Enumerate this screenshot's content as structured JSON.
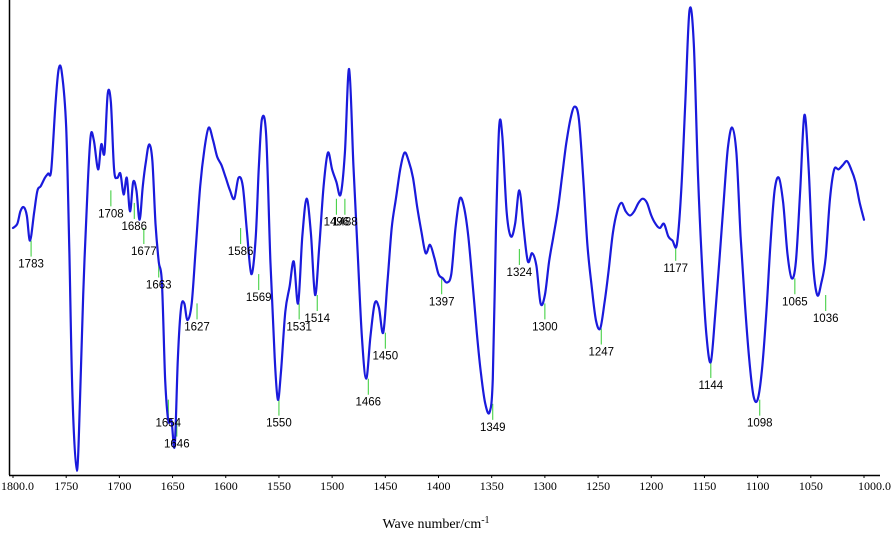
{
  "chart_data": {
    "type": "line",
    "title": "",
    "xlabel": "Wave number/cm",
    "xlabel_sup": "-1",
    "ylabel": "",
    "xlim": [
      1800,
      1000
    ],
    "x_reversed": true,
    "y_axis_ticks": false,
    "grid": false,
    "legend": "none",
    "colors": {
      "line": "#1a1adc",
      "marker": "#33cc33",
      "axis": "#000000"
    },
    "x_ticks": [
      {
        "value": 1800,
        "label": "1800.0"
      },
      {
        "value": 1750,
        "label": "1750"
      },
      {
        "value": 1700,
        "label": "1700"
      },
      {
        "value": 1650,
        "label": "1650"
      },
      {
        "value": 1600,
        "label": "1600"
      },
      {
        "value": 1550,
        "label": "1550"
      },
      {
        "value": 1500,
        "label": "1500"
      },
      {
        "value": 1450,
        "label": "1450"
      },
      {
        "value": 1400,
        "label": "1400"
      },
      {
        "value": 1350,
        "label": "1350"
      },
      {
        "value": 1300,
        "label": "1300"
      },
      {
        "value": 1250,
        "label": "1250"
      },
      {
        "value": 1200,
        "label": "1200"
      },
      {
        "value": 1150,
        "label": "1150"
      },
      {
        "value": 1100,
        "label": "1100"
      },
      {
        "value": 1050,
        "label": "1050"
      },
      {
        "value": 1000,
        "label": "1000.0"
      }
    ],
    "series": [
      {
        "points": [
          [
            1800,
            0.46
          ],
          [
            1796,
            0.47
          ],
          [
            1793,
            0.5
          ],
          [
            1790,
            0.51
          ],
          [
            1787,
            0.49
          ],
          [
            1784,
            0.43
          ],
          [
            1780,
            0.5
          ],
          [
            1777,
            0.55
          ],
          [
            1774,
            0.56
          ],
          [
            1770,
            0.58
          ],
          [
            1767,
            0.59
          ],
          [
            1764,
            0.6
          ],
          [
            1760,
            0.76
          ],
          [
            1757,
            0.84
          ],
          [
            1754,
            0.83
          ],
          [
            1750,
            0.7
          ],
          [
            1747,
            0.4
          ],
          [
            1744,
            0.05
          ],
          [
            1740,
            -0.12
          ],
          [
            1737,
            0.05
          ],
          [
            1734,
            0.3
          ],
          [
            1730,
            0.55
          ],
          [
            1727,
            0.68
          ],
          [
            1724,
            0.67
          ],
          [
            1720,
            0.6
          ],
          [
            1717,
            0.66
          ],
          [
            1714,
            0.64
          ],
          [
            1711,
            0.78
          ],
          [
            1708,
            0.76
          ],
          [
            1705,
            0.6
          ],
          [
            1702,
            0.58
          ],
          [
            1699,
            0.59
          ],
          [
            1696,
            0.54
          ],
          [
            1693,
            0.58
          ],
          [
            1690,
            0.5
          ],
          [
            1687,
            0.57
          ],
          [
            1684,
            0.55
          ],
          [
            1681,
            0.48
          ],
          [
            1678,
            0.56
          ],
          [
            1675,
            0.62
          ],
          [
            1672,
            0.66
          ],
          [
            1669,
            0.62
          ],
          [
            1666,
            0.47
          ],
          [
            1663,
            0.38
          ],
          [
            1660,
            0.33
          ],
          [
            1657,
            0.1
          ],
          [
            1654,
            0.0
          ],
          [
            1651,
            0.0
          ],
          [
            1648,
            -0.06
          ],
          [
            1645,
            0.15
          ],
          [
            1642,
            0.27
          ],
          [
            1639,
            0.28
          ],
          [
            1636,
            0.24
          ],
          [
            1632,
            0.28
          ],
          [
            1628,
            0.42
          ],
          [
            1624,
            0.56
          ],
          [
            1620,
            0.65
          ],
          [
            1616,
            0.7
          ],
          [
            1612,
            0.67
          ],
          [
            1608,
            0.63
          ],
          [
            1604,
            0.61
          ],
          [
            1600,
            0.58
          ],
          [
            1596,
            0.55
          ],
          [
            1592,
            0.53
          ],
          [
            1588,
            0.58
          ],
          [
            1584,
            0.56
          ],
          [
            1580,
            0.45
          ],
          [
            1576,
            0.35
          ],
          [
            1572,
            0.43
          ],
          [
            1569,
            0.6
          ],
          [
            1566,
            0.72
          ],
          [
            1562,
            0.68
          ],
          [
            1558,
            0.38
          ],
          [
            1554,
            0.15
          ],
          [
            1551,
            0.05
          ],
          [
            1548,
            0.12
          ],
          [
            1544,
            0.26
          ],
          [
            1540,
            0.32
          ],
          [
            1536,
            0.38
          ],
          [
            1532,
            0.28
          ],
          [
            1528,
            0.44
          ],
          [
            1524,
            0.53
          ],
          [
            1520,
            0.45
          ],
          [
            1516,
            0.3
          ],
          [
            1512,
            0.42
          ],
          [
            1508,
            0.56
          ],
          [
            1504,
            0.64
          ],
          [
            1500,
            0.6
          ],
          [
            1496,
            0.57
          ],
          [
            1492,
            0.54
          ],
          [
            1488,
            0.64
          ],
          [
            1484,
            0.84
          ],
          [
            1480,
            0.61
          ],
          [
            1476,
            0.4
          ],
          [
            1472,
            0.2
          ],
          [
            1468,
            0.1
          ],
          [
            1464,
            0.2
          ],
          [
            1460,
            0.28
          ],
          [
            1456,
            0.27
          ],
          [
            1452,
            0.21
          ],
          [
            1448,
            0.33
          ],
          [
            1444,
            0.46
          ],
          [
            1440,
            0.53
          ],
          [
            1436,
            0.6
          ],
          [
            1432,
            0.64
          ],
          [
            1428,
            0.62
          ],
          [
            1424,
            0.58
          ],
          [
            1420,
            0.51
          ],
          [
            1416,
            0.45
          ],
          [
            1412,
            0.4
          ],
          [
            1408,
            0.42
          ],
          [
            1404,
            0.39
          ],
          [
            1400,
            0.35
          ],
          [
            1396,
            0.34
          ],
          [
            1392,
            0.33
          ],
          [
            1388,
            0.35
          ],
          [
            1384,
            0.46
          ],
          [
            1380,
            0.53
          ],
          [
            1376,
            0.51
          ],
          [
            1372,
            0.44
          ],
          [
            1368,
            0.33
          ],
          [
            1364,
            0.21
          ],
          [
            1360,
            0.11
          ],
          [
            1356,
            0.04
          ],
          [
            1352,
            0.02
          ],
          [
            1349,
            0.1
          ],
          [
            1346,
            0.45
          ],
          [
            1343,
            0.7
          ],
          [
            1340,
            0.68
          ],
          [
            1336,
            0.5
          ],
          [
            1332,
            0.44
          ],
          [
            1328,
            0.47
          ],
          [
            1324,
            0.55
          ],
          [
            1320,
            0.46
          ],
          [
            1316,
            0.38
          ],
          [
            1312,
            0.4
          ],
          [
            1308,
            0.37
          ],
          [
            1304,
            0.28
          ],
          [
            1300,
            0.3
          ],
          [
            1296,
            0.38
          ],
          [
            1292,
            0.44
          ],
          [
            1288,
            0.5
          ],
          [
            1284,
            0.58
          ],
          [
            1280,
            0.66
          ],
          [
            1276,
            0.72
          ],
          [
            1272,
            0.75
          ],
          [
            1268,
            0.72
          ],
          [
            1264,
            0.58
          ],
          [
            1260,
            0.42
          ],
          [
            1256,
            0.32
          ],
          [
            1252,
            0.24
          ],
          [
            1248,
            0.22
          ],
          [
            1244,
            0.28
          ],
          [
            1240,
            0.36
          ],
          [
            1236,
            0.45
          ],
          [
            1232,
            0.5
          ],
          [
            1228,
            0.52
          ],
          [
            1224,
            0.5
          ],
          [
            1220,
            0.49
          ],
          [
            1216,
            0.5
          ],
          [
            1212,
            0.52
          ],
          [
            1208,
            0.53
          ],
          [
            1204,
            0.52
          ],
          [
            1200,
            0.49
          ],
          [
            1196,
            0.47
          ],
          [
            1192,
            0.46
          ],
          [
            1188,
            0.47
          ],
          [
            1184,
            0.44
          ],
          [
            1180,
            0.43
          ],
          [
            1176,
            0.42
          ],
          [
            1172,
            0.54
          ],
          [
            1168,
            0.76
          ],
          [
            1164,
            0.98
          ],
          [
            1160,
            0.9
          ],
          [
            1156,
            0.58
          ],
          [
            1152,
            0.36
          ],
          [
            1148,
            0.2
          ],
          [
            1144,
            0.14
          ],
          [
            1140,
            0.25
          ],
          [
            1136,
            0.38
          ],
          [
            1132,
            0.52
          ],
          [
            1128,
            0.65
          ],
          [
            1124,
            0.7
          ],
          [
            1120,
            0.64
          ],
          [
            1116,
            0.44
          ],
          [
            1112,
            0.28
          ],
          [
            1108,
            0.15
          ],
          [
            1104,
            0.06
          ],
          [
            1100,
            0.05
          ],
          [
            1096,
            0.12
          ],
          [
            1092,
            0.25
          ],
          [
            1088,
            0.42
          ],
          [
            1084,
            0.55
          ],
          [
            1080,
            0.58
          ],
          [
            1076,
            0.52
          ],
          [
            1072,
            0.4
          ],
          [
            1068,
            0.34
          ],
          [
            1064,
            0.38
          ],
          [
            1060,
            0.55
          ],
          [
            1056,
            0.73
          ],
          [
            1052,
            0.6
          ],
          [
            1048,
            0.38
          ],
          [
            1044,
            0.3
          ],
          [
            1040,
            0.33
          ],
          [
            1036,
            0.39
          ],
          [
            1032,
            0.53
          ],
          [
            1028,
            0.6
          ],
          [
            1024,
            0.6
          ],
          [
            1020,
            0.61
          ],
          [
            1016,
            0.62
          ],
          [
            1012,
            0.6
          ],
          [
            1008,
            0.57
          ],
          [
            1004,
            0.52
          ],
          [
            1000,
            0.48
          ]
        ]
      }
    ],
    "peaks": [
      {
        "x": 1783,
        "label": "1783",
        "y": 0.43
      },
      {
        "x": 1708,
        "label": "1708",
        "y": 0.55
      },
      {
        "x": 1686,
        "label": "1686",
        "y": 0.52
      },
      {
        "x": 1677,
        "label": "1677",
        "y": 0.46
      },
      {
        "x": 1663,
        "label": "1663",
        "y": 0.38
      },
      {
        "x": 1654,
        "label": "1654",
        "y": 0.05
      },
      {
        "x": 1646,
        "label": "1646",
        "y": 0.0
      },
      {
        "x": 1627,
        "label": "1627",
        "y": 0.28
      },
      {
        "x": 1586,
        "label": "1586",
        "y": 0.46
      },
      {
        "x": 1569,
        "label": "1569",
        "y": 0.35
      },
      {
        "x": 1550,
        "label": "1550",
        "y": 0.05
      },
      {
        "x": 1531,
        "label": "1531",
        "y": 0.28
      },
      {
        "x": 1514,
        "label": "1514",
        "y": 0.3
      },
      {
        "x": 1496,
        "label": "1496",
        "y": 0.53
      },
      {
        "x": 1488,
        "label": "1488",
        "y": 0.53
      },
      {
        "x": 1466,
        "label": "1466",
        "y": 0.1
      },
      {
        "x": 1450,
        "label": "1450",
        "y": 0.21
      },
      {
        "x": 1397,
        "label": "1397",
        "y": 0.34
      },
      {
        "x": 1349,
        "label": "1349",
        "y": 0.04
      },
      {
        "x": 1324,
        "label": "1324",
        "y": 0.41
      },
      {
        "x": 1300,
        "label": "1300",
        "y": 0.28
      },
      {
        "x": 1247,
        "label": "1247",
        "y": 0.22
      },
      {
        "x": 1177,
        "label": "1177",
        "y": 0.42
      },
      {
        "x": 1144,
        "label": "1144",
        "y": 0.14
      },
      {
        "x": 1098,
        "label": "1098",
        "y": 0.05
      },
      {
        "x": 1065,
        "label": "1065",
        "y": 0.34
      },
      {
        "x": 1036,
        "label": "1036",
        "y": 0.3
      }
    ]
  }
}
